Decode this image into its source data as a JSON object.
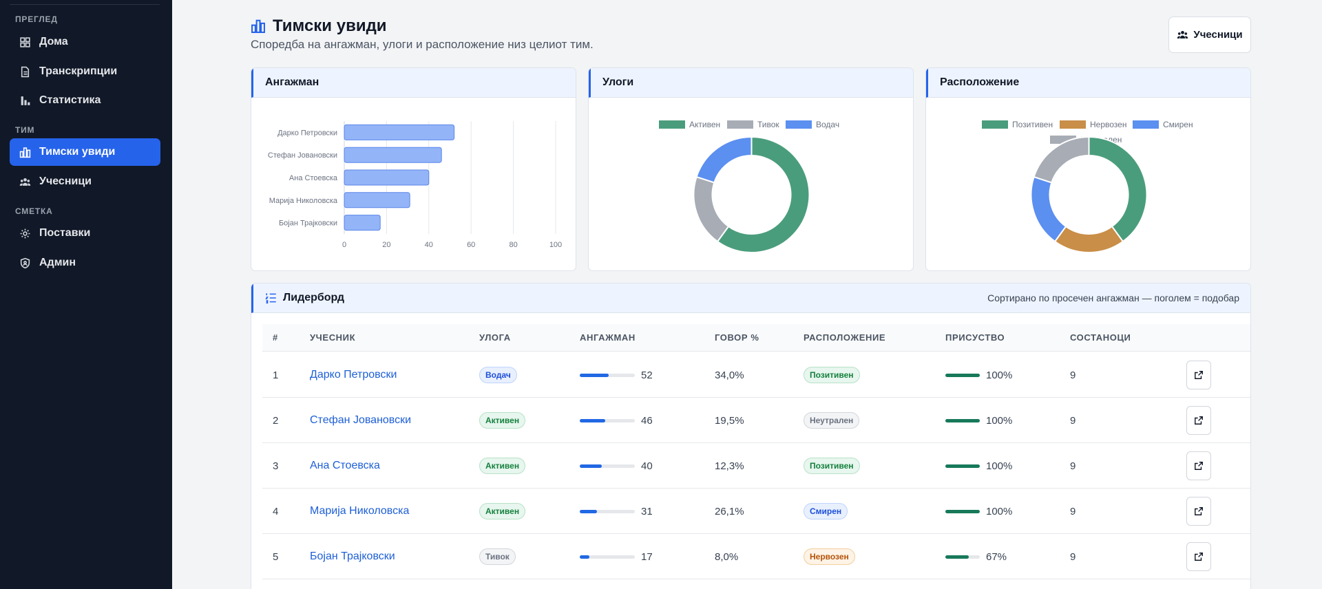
{
  "sidebar": {
    "sections": [
      {
        "title": "ПРЕГЛЕД",
        "items": [
          {
            "label": "Дома",
            "icon": "dashboard-icon"
          },
          {
            "label": "Транскрипции",
            "icon": "document-icon"
          },
          {
            "label": "Статистика",
            "icon": "bar-chart-icon"
          }
        ]
      },
      {
        "title": "ТИМ",
        "items": [
          {
            "label": "Тимски увиди",
            "icon": "team-chart-icon",
            "active": true
          },
          {
            "label": "Учесници",
            "icon": "people-icon"
          }
        ]
      },
      {
        "title": "СМЕТКА",
        "items": [
          {
            "label": "Поставки",
            "icon": "gear-icon"
          },
          {
            "label": "Админ",
            "icon": "shield-icon"
          }
        ]
      }
    ]
  },
  "header": {
    "title": "Тимски увиди",
    "subtitle": "Споредба на ангажман, улоги и расположение низ целиот тим.",
    "participants_button": "Учесници"
  },
  "engagement_card": {
    "title": "Ангажман"
  },
  "roles_card": {
    "title": "Улоги"
  },
  "mood_card": {
    "title": "Расположение"
  },
  "chart_data": [
    {
      "type": "bar",
      "title": "Ангажман",
      "orientation": "horizontal",
      "categories": [
        "Дарко Петровски",
        "Стефан Јовановски",
        "Ана Стоевска",
        "Марија Николовска",
        "Бојан Трајковски"
      ],
      "values": [
        52,
        46,
        40,
        31,
        17
      ],
      "xlim": [
        0,
        100
      ],
      "xticks": [
        0,
        20,
        40,
        60,
        80,
        100
      ],
      "grid": true,
      "color": "#93b4f7"
    },
    {
      "type": "pie",
      "title": "Улоги",
      "donut": true,
      "legend_position": "top",
      "labels": [
        "Активен",
        "Тивок",
        "Водач"
      ],
      "values": [
        3,
        1,
        1
      ],
      "colors": [
        "#4a9d7c",
        "#a7acb5",
        "#5b8ff0"
      ]
    },
    {
      "type": "pie",
      "title": "Расположение",
      "donut": true,
      "legend_position": "top",
      "labels": [
        "Позитивен",
        "Нервозен",
        "Смирен",
        "Неутрален"
      ],
      "values": [
        2,
        1,
        1,
        1
      ],
      "colors": [
        "#4a9d7c",
        "#c98e48",
        "#5b8ff0",
        "#a7acb5"
      ]
    }
  ],
  "leaderboard": {
    "title": "Лидерборд",
    "note": "Сортирано по просечен ангажман — поголем = подобар",
    "columns": [
      "#",
      "УЧЕСНИК",
      "УЛОГА",
      "АНГАЖМАН",
      "ГОВОР %",
      "РАСПОЛОЖЕНИЕ",
      "ПРИСУСТВО",
      "СОСТАНОЦИ"
    ],
    "rows": [
      {
        "rank": "1",
        "name": "Дарко Петровски",
        "role": "Водач",
        "role_style": "blue",
        "engagement": 52,
        "speech": "34,0%",
        "mood": "Позитивен",
        "mood_style": "green",
        "attendance": 100,
        "attendance_label": "100%",
        "meetings": "9"
      },
      {
        "rank": "2",
        "name": "Стефан Јовановски",
        "role": "Активен",
        "role_style": "green",
        "engagement": 46,
        "speech": "19,5%",
        "mood": "Неутрален",
        "mood_style": "gray",
        "attendance": 100,
        "attendance_label": "100%",
        "meetings": "9"
      },
      {
        "rank": "3",
        "name": "Ана Стоевска",
        "role": "Активен",
        "role_style": "green",
        "engagement": 40,
        "speech": "12,3%",
        "mood": "Позитивен",
        "mood_style": "green",
        "attendance": 100,
        "attendance_label": "100%",
        "meetings": "9"
      },
      {
        "rank": "4",
        "name": "Марија Николовска",
        "role": "Активен",
        "role_style": "green",
        "engagement": 31,
        "speech": "26,1%",
        "mood": "Смирен",
        "mood_style": "blue",
        "attendance": 100,
        "attendance_label": "100%",
        "meetings": "9"
      },
      {
        "rank": "5",
        "name": "Бојан Трајковски",
        "role": "Тивок",
        "role_style": "gray",
        "engagement": 17,
        "speech": "8,0%",
        "mood": "Нервозен",
        "mood_style": "orange",
        "attendance": 67,
        "attendance_label": "67%",
        "meetings": "9"
      }
    ]
  },
  "colors": {
    "accent": "#2563eb",
    "sidebar_bg": "#111827",
    "engagement_bar": "#2168e4",
    "attendance_bar": "#17795a"
  }
}
